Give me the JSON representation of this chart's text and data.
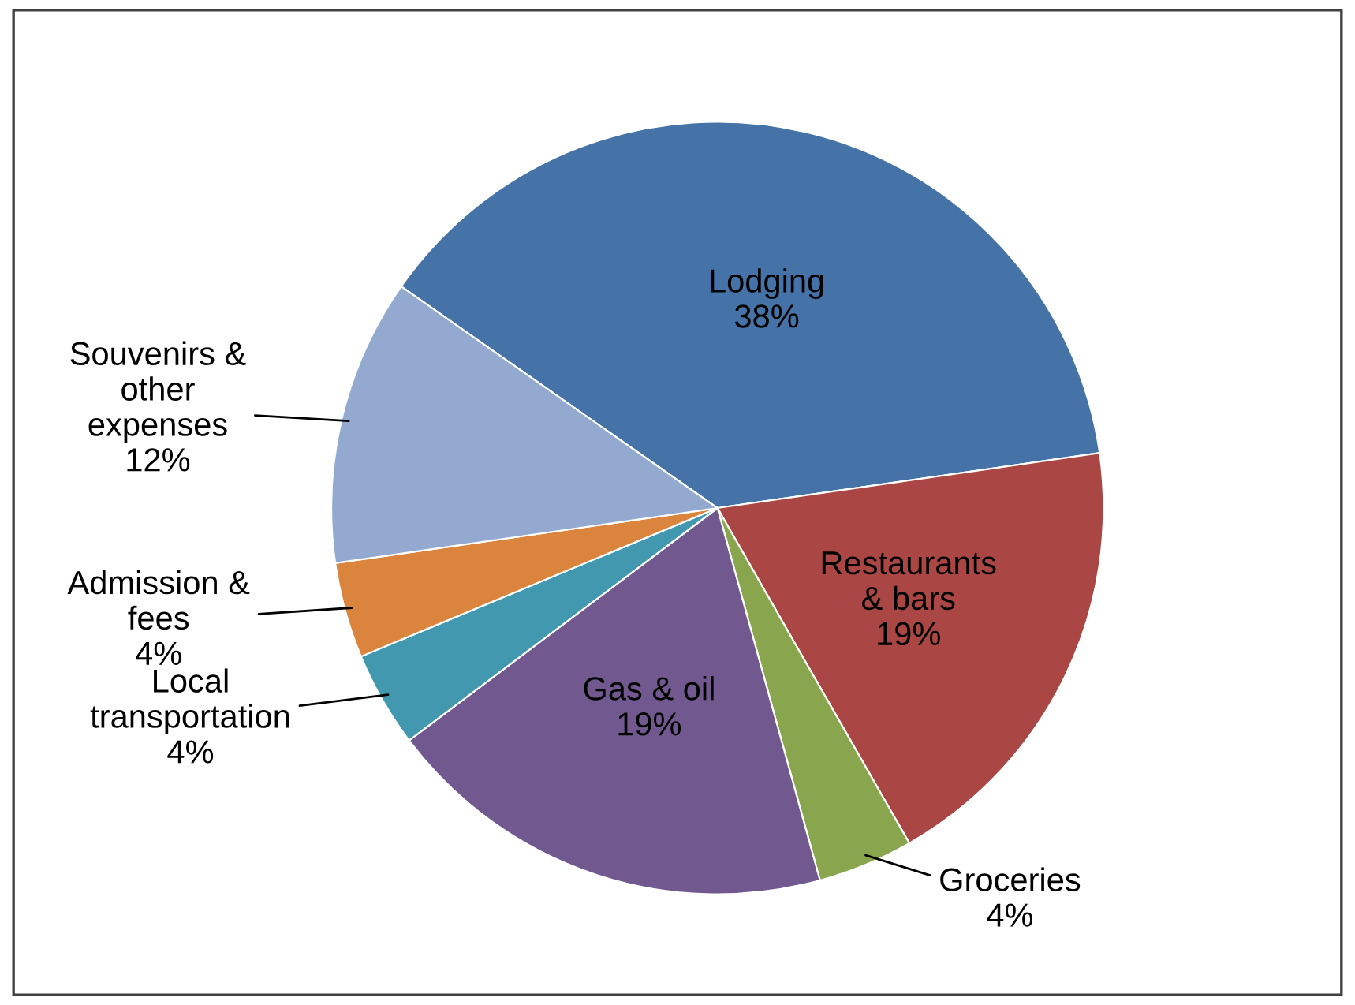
{
  "chart_data": {
    "type": "pie",
    "categories": [
      "Lodging",
      "Restaurants\n& bars",
      "Groceries",
      "Gas & oil",
      "Local\ntransportation",
      "Admission &\nfees",
      "Souvenirs &\nother\nexpenses"
    ],
    "values": [
      38,
      19,
      4,
      19,
      4,
      4,
      12
    ],
    "value_labels": [
      "38%",
      "19%",
      "4%",
      "19%",
      "4%",
      "4%",
      "12%"
    ],
    "colors": [
      "#4572a7",
      "#aa4643",
      "#89a54e",
      "#71588f",
      "#4198af",
      "#db843d",
      "#93a9cf"
    ],
    "legend": false
  }
}
